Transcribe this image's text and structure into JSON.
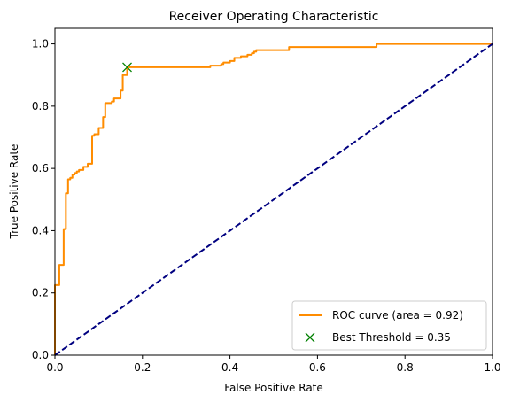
{
  "chart_data": {
    "type": "line",
    "title": "Receiver Operating Characteristic",
    "xlabel": "False Positive Rate",
    "ylabel": "True Positive Rate",
    "xlim": [
      0.0,
      1.0
    ],
    "ylim": [
      0.0,
      1.05
    ],
    "x_ticks": [
      "0.0",
      "0.2",
      "0.4",
      "0.6",
      "0.8",
      "1.0"
    ],
    "y_ticks": [
      "0.0",
      "0.2",
      "0.4",
      "0.6",
      "0.8",
      "1.0"
    ],
    "grid": false,
    "legend_position": "lower-right",
    "series": [
      {
        "name": "ROC curve (area = 0.92)",
        "color": "#ff8c00",
        "style": "solid",
        "x": [
          0.0,
          0.0,
          0.01,
          0.01,
          0.02,
          0.02,
          0.025,
          0.025,
          0.03,
          0.03,
          0.035,
          0.035,
          0.04,
          0.04,
          0.045,
          0.045,
          0.05,
          0.05,
          0.055,
          0.055,
          0.065,
          0.065,
          0.075,
          0.075,
          0.085,
          0.085,
          0.09,
          0.09,
          0.1,
          0.1,
          0.11,
          0.11,
          0.115,
          0.115,
          0.13,
          0.13,
          0.135,
          0.135,
          0.15,
          0.15,
          0.155,
          0.155,
          0.165,
          0.165,
          0.2,
          0.2,
          0.355,
          0.355,
          0.38,
          0.38,
          0.385,
          0.385,
          0.4,
          0.4,
          0.41,
          0.41,
          0.425,
          0.425,
          0.44,
          0.44,
          0.45,
          0.45,
          0.455,
          0.455,
          0.46,
          0.46,
          0.535,
          0.535,
          0.735,
          0.735,
          1.0
        ],
        "y": [
          0.0,
          0.225,
          0.225,
          0.29,
          0.29,
          0.405,
          0.405,
          0.52,
          0.52,
          0.565,
          0.565,
          0.57,
          0.57,
          0.58,
          0.58,
          0.585,
          0.585,
          0.59,
          0.59,
          0.595,
          0.595,
          0.605,
          0.605,
          0.615,
          0.615,
          0.705,
          0.705,
          0.71,
          0.71,
          0.73,
          0.73,
          0.765,
          0.765,
          0.81,
          0.81,
          0.815,
          0.815,
          0.825,
          0.825,
          0.85,
          0.85,
          0.9,
          0.9,
          0.925,
          0.925,
          0.925,
          0.925,
          0.93,
          0.93,
          0.935,
          0.935,
          0.94,
          0.94,
          0.945,
          0.945,
          0.955,
          0.955,
          0.96,
          0.96,
          0.965,
          0.965,
          0.97,
          0.97,
          0.975,
          0.975,
          0.98,
          0.98,
          0.99,
          0.99,
          1.0,
          1.0
        ]
      },
      {
        "name": "",
        "color": "#000080",
        "style": "dashed",
        "x": [
          0.0,
          1.0
        ],
        "y": [
          0.0,
          1.0
        ]
      }
    ],
    "markers": [
      {
        "name": "Best Threshold = 0.35",
        "color": "#008000",
        "shape": "x",
        "x": 0.165,
        "y": 0.925
      }
    ],
    "legend": [
      "ROC curve (area = 0.92)",
      "Best Threshold = 0.35"
    ]
  }
}
